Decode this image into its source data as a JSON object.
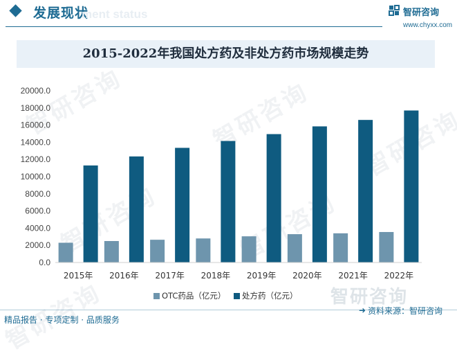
{
  "header": {
    "title": "发展现状",
    "subtitle": "ment status",
    "logo_text": "智研咨询",
    "logo_url": "www.chyxx.com"
  },
  "watermark_text": "智研咨询",
  "footer": {
    "left_text": "精品报告 · 专项定制 · 品质服务",
    "source_text": "资料来源：智研咨询"
  },
  "colors": {
    "accent": "#1e6b93",
    "otc": "#6e95ad",
    "rx": "#0f5b80",
    "title_band": "#e9f1f8"
  },
  "chart_data": {
    "type": "bar",
    "title": "2015-2022年我国处方药及非处方药市场规模走势",
    "categories": [
      "2015年",
      "2016年",
      "2017年",
      "2018年",
      "2019年",
      "2020年",
      "2021年",
      "2022年"
    ],
    "series": [
      {
        "name": "OTC药品（亿元）",
        "values": [
          2300,
          2500,
          2650,
          2800,
          3050,
          3300,
          3400,
          3550
        ]
      },
      {
        "name": "处方药（亿元）",
        "values": [
          11300,
          12350,
          13350,
          14150,
          14950,
          15850,
          16600,
          17700
        ]
      }
    ],
    "yticks": [
      "0.0",
      "2000.0",
      "4000.0",
      "6000.0",
      "8000.0",
      "10000.0",
      "12000.0",
      "14000.0",
      "16000.0",
      "18000.0",
      "20000.0"
    ],
    "ylim": [
      0,
      20000
    ],
    "grid": false,
    "legend": "bottom"
  }
}
